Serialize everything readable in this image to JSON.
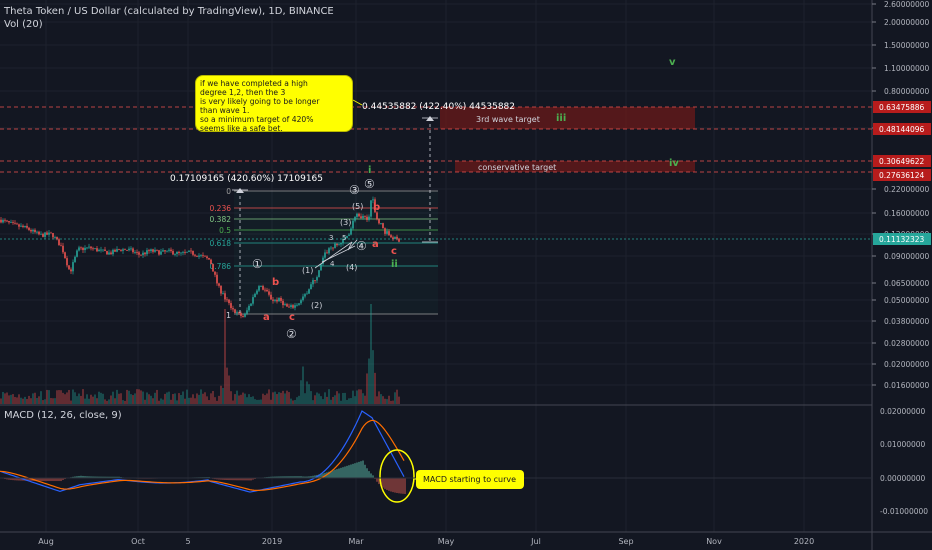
{
  "header": {
    "title": "Theta Token / US Dollar (calculated by TradingView), 1D, BINANCE",
    "volume_label": "Vol (20)",
    "macd_label": "MACD (12, 26, close, 9)"
  },
  "colors": {
    "background": "#131722",
    "up": "#26a69a",
    "down": "#ef5350",
    "grid": "#2a2e39",
    "target_zone": "#7f1d1d",
    "annotation": "#ffff00",
    "wave_green": "#4caf50"
  },
  "annotations": {
    "note_lines": [
      "if we have completed a high",
      "degree 1,2, then the 3",
      "is very likely going to be longer",
      "than wave 1.",
      "so a minimum target of 420%",
      "seems like a safe bet."
    ],
    "measure_1": "0.17109165 (420.60%) 17109165",
    "measure_2": "0.44535882 (422.40%) 44535882",
    "zone_3rd": "3rd wave target",
    "zone_conservative": "conservative target",
    "macd_note": "MACD starting to curve"
  },
  "waves": {
    "v": "v",
    "iii": "iii",
    "iv": "iv",
    "i": "i",
    "ii": "ii",
    "a": "a",
    "b": "b",
    "c": "c",
    "c1": "①",
    "c2": "②",
    "c3": "③",
    "c4": "④",
    "c5": "⑤",
    "p1": "(1)",
    "p2": "(2)",
    "p3": "(3)",
    "p4": "(4)",
    "p5": "(5)",
    "s3": "3",
    "s5": "5",
    "s4": "4"
  },
  "fib_levels": [
    "0",
    "0.236",
    "0.382",
    "0.5",
    "0.618",
    "0.786",
    "1"
  ],
  "chart_data": {
    "type": "candlestick",
    "x_ticks": [
      "Aug",
      "Oct",
      "5",
      "2019",
      "Mar",
      "May",
      "Jul",
      "Sep",
      "Nov",
      "2020"
    ],
    "y_scale": "log",
    "price_axis": [
      "2.60000000",
      "2.00000000",
      "1.50000000",
      "1.10000000",
      "0.80000000",
      "0.45000000",
      "0.22000000",
      "0.16000000",
      "0.12000000",
      "0.09000000",
      "0.06500000",
      "0.05000000",
      "0.03800000",
      "0.02800000",
      "0.02000000",
      "0.01600000"
    ],
    "price_tags": [
      {
        "value": "0.63475886",
        "color": "#b71c1c"
      },
      {
        "value": "0.48144096",
        "color": "#b71c1c"
      },
      {
        "value": "0.30649622",
        "color": "#b71c1c"
      },
      {
        "value": "0.27636124",
        "color": "#b71c1c"
      },
      {
        "value": "0.11132323",
        "color": "#26a69a"
      }
    ],
    "macd_axis": [
      "0.02000000",
      "0.01000000",
      "0.00000000",
      "-0.01000000"
    ],
    "last_price": 0.11132323
  }
}
